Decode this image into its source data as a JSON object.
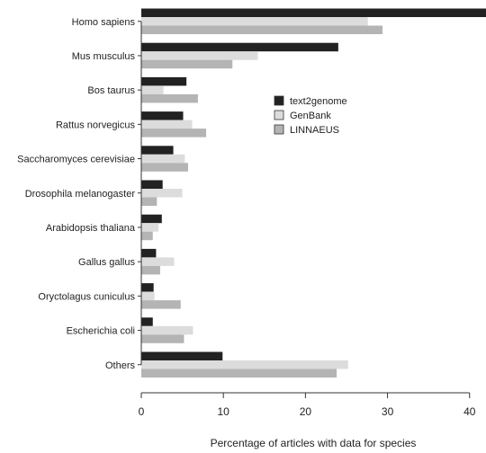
{
  "chart_data": {
    "type": "bar",
    "orientation": "horizontal",
    "title": "",
    "xlabel": "Percentage of articles with data for species",
    "ylabel": "",
    "xlim": [
      0,
      42
    ],
    "xticks": [
      0,
      10,
      20,
      30,
      40
    ],
    "grid": false,
    "legend_position": "right",
    "categories": [
      "Homo sapiens",
      "Mus musculus",
      "Bos taurus",
      "Rattus norvegicus",
      "Saccharomyces cerevisiae",
      "Drosophila melanogaster",
      "Arabidopsis thaliana",
      "Gallus gallus",
      "Oryctolagus cuniculus",
      "Escherichia coli",
      "Others"
    ],
    "series": [
      {
        "name": "text2genome",
        "color": "#222222",
        "values": [
          42.0,
          24.0,
          5.5,
          5.1,
          3.9,
          2.6,
          2.5,
          1.8,
          1.5,
          1.4,
          9.9
        ]
      },
      {
        "name": "GenBank",
        "color": "#dcdcdc",
        "values": [
          27.6,
          14.2,
          2.7,
          6.2,
          5.3,
          5.0,
          2.1,
          4.0,
          1.6,
          6.3,
          25.2
        ]
      },
      {
        "name": "LINNAEUS",
        "color": "#b4b4b4",
        "values": [
          29.4,
          11.1,
          6.9,
          7.9,
          5.7,
          1.9,
          1.4,
          2.3,
          4.8,
          5.2,
          23.8
        ]
      }
    ]
  }
}
